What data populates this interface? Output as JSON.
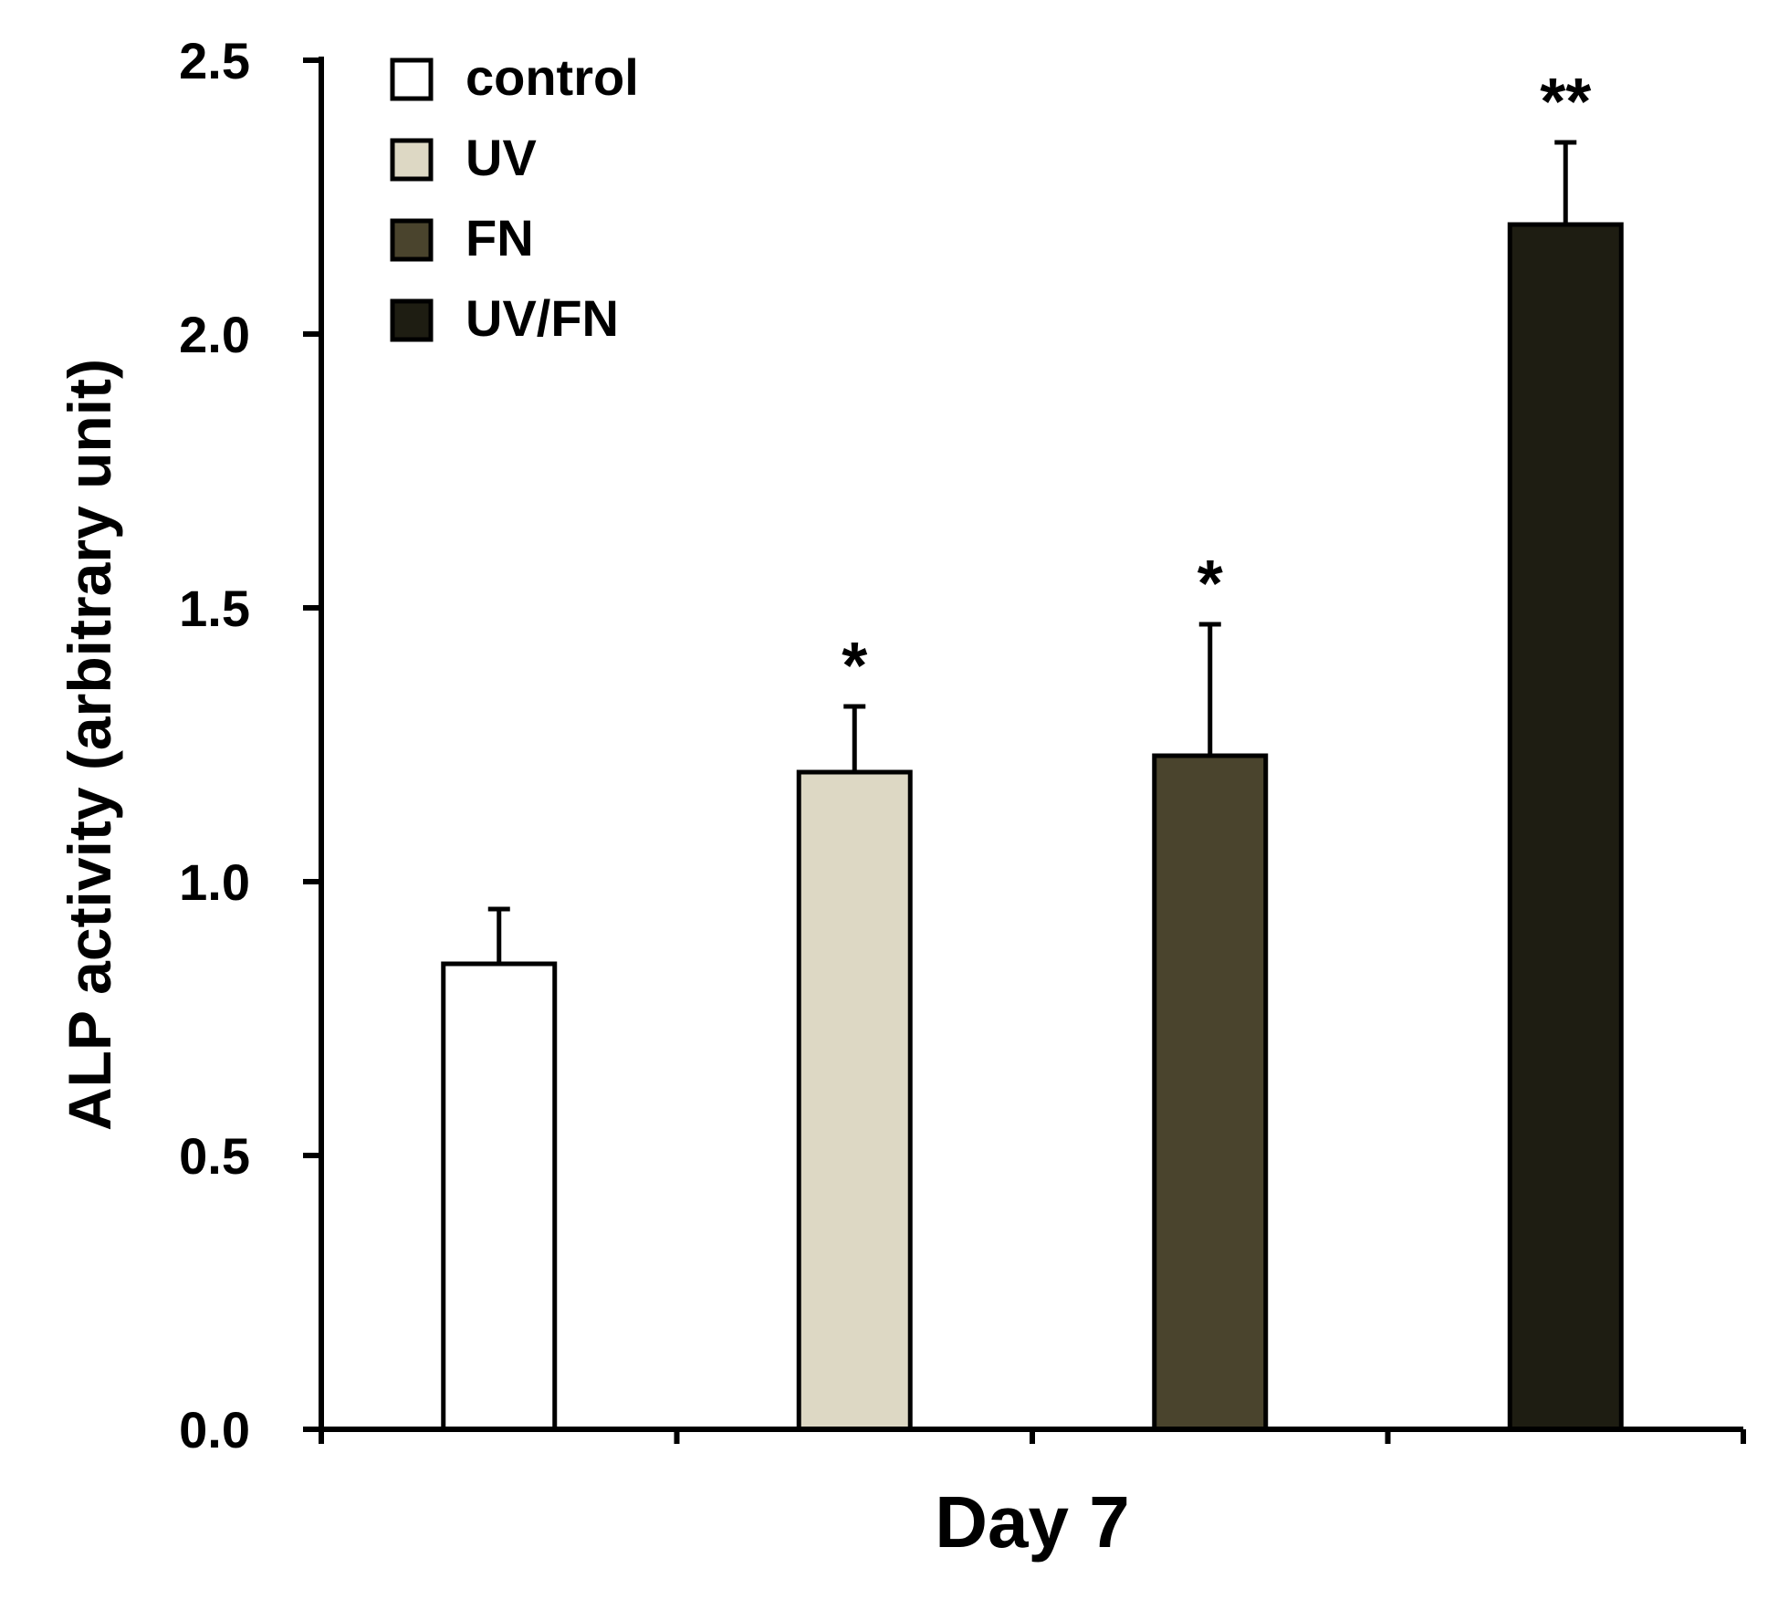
{
  "chart_data": {
    "type": "bar",
    "title": "",
    "xlabel": "Day 7",
    "ylabel": "ALP activity (arbitrary unit)",
    "ylim": [
      0,
      2.5
    ],
    "yticks": [
      0.0,
      0.5,
      1.0,
      1.5,
      2.0,
      2.5
    ],
    "ytick_labels": [
      "0.0",
      "0.5",
      "1.0",
      "1.5",
      "2.0",
      "2.5"
    ],
    "grid": false,
    "legend_position": "top-left",
    "categories": [
      "control",
      "UV",
      "FN",
      "UV/FN"
    ],
    "values": [
      0.85,
      1.2,
      1.23,
      2.2
    ],
    "errors": [
      0.1,
      0.12,
      0.24,
      0.15
    ],
    "significance": [
      "",
      "*",
      "*",
      "**"
    ],
    "colors": [
      "#ffffff",
      "#ddd8c4",
      "#4a442d",
      "#1e1d12"
    ]
  }
}
